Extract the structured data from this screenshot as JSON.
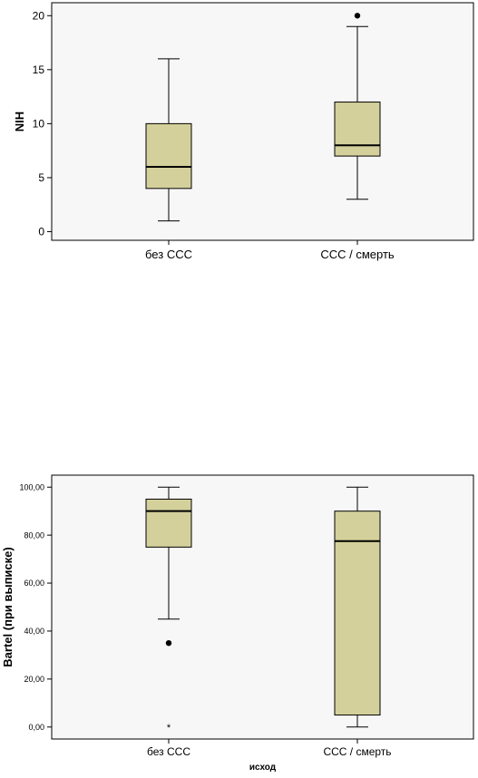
{
  "chart_data": [
    {
      "type": "boxplot",
      "title": "",
      "ylabel": "NIH",
      "xlabel": "",
      "ylim": [
        -0.8,
        21.2
      ],
      "y_ticks": [
        0,
        5,
        10,
        15,
        20
      ],
      "tick_format": "integer",
      "grid": false,
      "box_color": "#d4d09b",
      "categories": [
        "без ССС",
        "ССС / смерть"
      ],
      "boxes": [
        {
          "category": "без ССС",
          "whisker_low": 1,
          "q1": 4,
          "median": 6,
          "q3": 10,
          "whisker_high": 16,
          "outliers": [],
          "extremes": []
        },
        {
          "category": "ССС / смерть",
          "whisker_low": 3,
          "q1": 7,
          "median": 8,
          "q3": 12,
          "whisker_high": 19,
          "outliers": [
            20
          ],
          "extremes": []
        }
      ]
    },
    {
      "type": "boxplot",
      "title": "",
      "ylabel": "Bartel (при выписке)",
      "xlabel": "исход",
      "ylim": [
        -5,
        105
      ],
      "y_ticks": [
        0,
        20,
        40,
        60,
        80,
        100
      ],
      "tick_format": "decimal2comma",
      "grid": false,
      "box_color": "#d4d09b",
      "categories": [
        "без ССС",
        "ССС / смерть"
      ],
      "boxes": [
        {
          "category": "без ССС",
          "whisker_low": 45,
          "q1": 75,
          "median": 90,
          "q3": 95,
          "whisker_high": 100,
          "outliers": [
            35
          ],
          "extremes": [
            0
          ]
        },
        {
          "category": "ССС / смерть",
          "whisker_low": 0,
          "q1": 5,
          "median": 77.5,
          "q3": 90,
          "whisker_high": 100,
          "outliers": [],
          "extremes": []
        }
      ]
    }
  ]
}
